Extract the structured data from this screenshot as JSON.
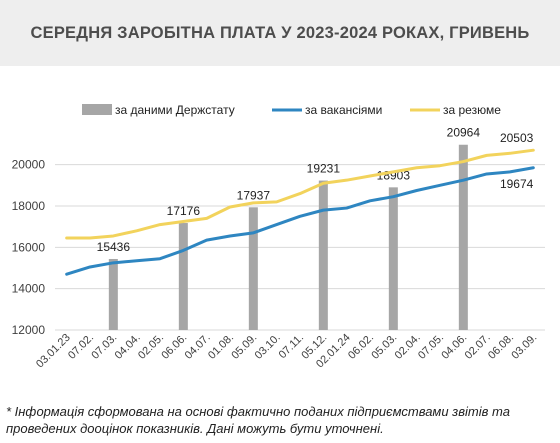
{
  "title": "СЕРЕДНЯ ЗАРОБІТНА ПЛАТА У 2023-2024 РОКАХ, ГРИВЕНЬ",
  "footnote": "* Інформація сформована на основі фактично поданих підприємствами звітів та проведених дооцінок показників. Дані можуть бути уточнені.",
  "colors": {
    "bars": "#a6a6a6",
    "vacancies": "#2e86c1",
    "resume": "#f2d35c",
    "grid": "#d9d9d9",
    "text": "#404040",
    "title_bg": "#eeeeee"
  },
  "chart_data": {
    "type": "bar+line",
    "title": "СЕРЕДНЯ ЗАРОБІТНА ПЛАТА У 2023-2024 РОКАХ, ГРИВЕНЬ",
    "x": [
      "03.01.23",
      "07.02.",
      "07.03.",
      "04.04.",
      "02.05.",
      "06.06.",
      "04.07.",
      "01.08.",
      "05.09.",
      "03.10.",
      "07.11.",
      "05.12.",
      "02.01.24",
      "06.02.",
      "05.03.",
      "02.04.",
      "07.05.",
      "04.06.",
      "02.07.",
      "06.08.",
      "03.09."
    ],
    "ylim": [
      12000,
      21000
    ],
    "yticks": [
      12000,
      14000,
      16000,
      18000,
      20000
    ],
    "grid": true,
    "legend_position": "top",
    "bars": {
      "name": "за даними Держстату",
      "points": [
        {
          "index": 2,
          "value": 15436
        },
        {
          "index": 5,
          "value": 17176
        },
        {
          "index": 8,
          "value": 17937
        },
        {
          "index": 11,
          "value": 19231
        },
        {
          "index": 14,
          "value": 18903
        },
        {
          "index": 17,
          "value": 20964
        }
      ]
    },
    "series": [
      {
        "name": "за вакансіями",
        "values": [
          14700,
          15050,
          15250,
          15350,
          15450,
          15850,
          16350,
          16550,
          16700,
          17100,
          17500,
          17800,
          17900,
          18250,
          18450,
          18750,
          19000,
          19250,
          19550,
          19650,
          19850
        ],
        "end_label": "19674"
      },
      {
        "name": "за резюме",
        "values": [
          16450,
          16450,
          16550,
          16800,
          17100,
          17250,
          17400,
          17950,
          18150,
          18200,
          18600,
          19100,
          19250,
          19450,
          19650,
          19850,
          19950,
          20150,
          20450,
          20550,
          20700
        ],
        "end_label": "20503"
      }
    ]
  }
}
